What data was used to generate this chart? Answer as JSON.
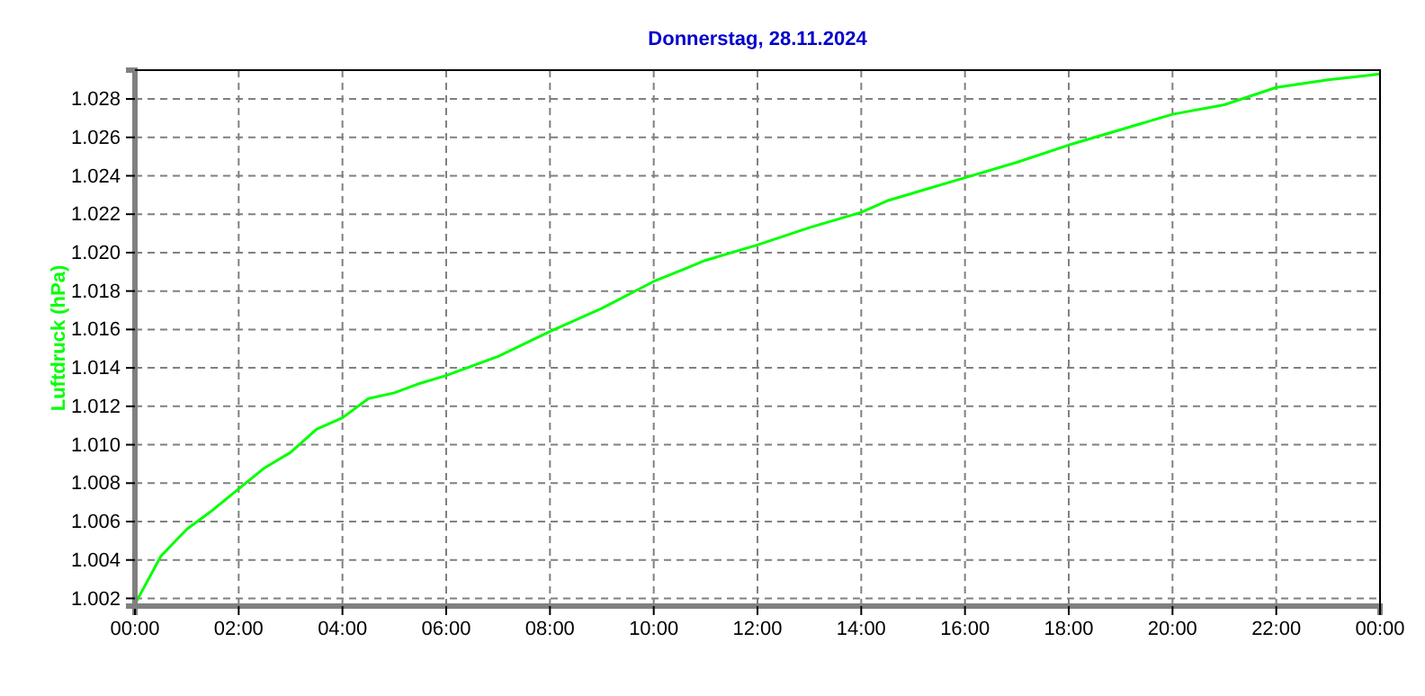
{
  "chart_data": {
    "type": "line",
    "title": "Donnerstag, 28.11.2024",
    "ylabel": "Luftdruck (hPa)",
    "x": [
      0,
      0.5,
      1,
      1.5,
      2,
      2.5,
      3,
      3.5,
      4,
      4.5,
      5,
      5.5,
      6,
      7,
      8,
      9,
      10,
      11,
      12,
      13,
      14,
      14.5,
      15,
      16,
      17,
      18,
      19,
      20,
      21,
      22,
      23,
      24
    ],
    "series": [
      {
        "color": "#00ff00",
        "values": [
          1001.7,
          1004.2,
          1005.6,
          1006.6,
          1007.7,
          1008.8,
          1009.6,
          1010.8,
          1011.4,
          1012.4,
          1012.7,
          1013.2,
          1013.6,
          1014.6,
          1015.9,
          1017.1,
          1018.5,
          1019.6,
          1020.4,
          1021.3,
          1022.1,
          1022.7,
          1023.1,
          1023.9,
          1024.7,
          1025.6,
          1026.4,
          1027.2,
          1027.7,
          1028.6,
          1029.0,
          1029.3
        ]
      }
    ],
    "xlim": [
      0,
      24
    ],
    "xticks": [
      {
        "value": 0,
        "label": "00:00"
      },
      {
        "value": 2,
        "label": "02:00"
      },
      {
        "value": 4,
        "label": "04:00"
      },
      {
        "value": 6,
        "label": "06:00"
      },
      {
        "value": 8,
        "label": "08:00"
      },
      {
        "value": 10,
        "label": "10:00"
      },
      {
        "value": 12,
        "label": "12:00"
      },
      {
        "value": 14,
        "label": "14:00"
      },
      {
        "value": 16,
        "label": "16:00"
      },
      {
        "value": 18,
        "label": "18:00"
      },
      {
        "value": 20,
        "label": "20:00"
      },
      {
        "value": 22,
        "label": "22:00"
      },
      {
        "value": 24,
        "label": "00:00"
      }
    ],
    "ylim": [
      1001.6,
      1029.5
    ],
    "yticks": [
      {
        "value": 1002,
        "label": "1.002"
      },
      {
        "value": 1004,
        "label": "1.004"
      },
      {
        "value": 1006,
        "label": "1.006"
      },
      {
        "value": 1008,
        "label": "1.008"
      },
      {
        "value": 1010,
        "label": "1.010"
      },
      {
        "value": 1012,
        "label": "1.012"
      },
      {
        "value": 1014,
        "label": "1.014"
      },
      {
        "value": 1016,
        "label": "1.016"
      },
      {
        "value": 1018,
        "label": "1.018"
      },
      {
        "value": 1020,
        "label": "1.020"
      },
      {
        "value": 1022,
        "label": "1.022"
      },
      {
        "value": 1024,
        "label": "1.024"
      },
      {
        "value": 1026,
        "label": "1.026"
      },
      {
        "value": 1028,
        "label": "1.028"
      }
    ],
    "grid": true,
    "marker": "none",
    "line_style": "solid"
  }
}
